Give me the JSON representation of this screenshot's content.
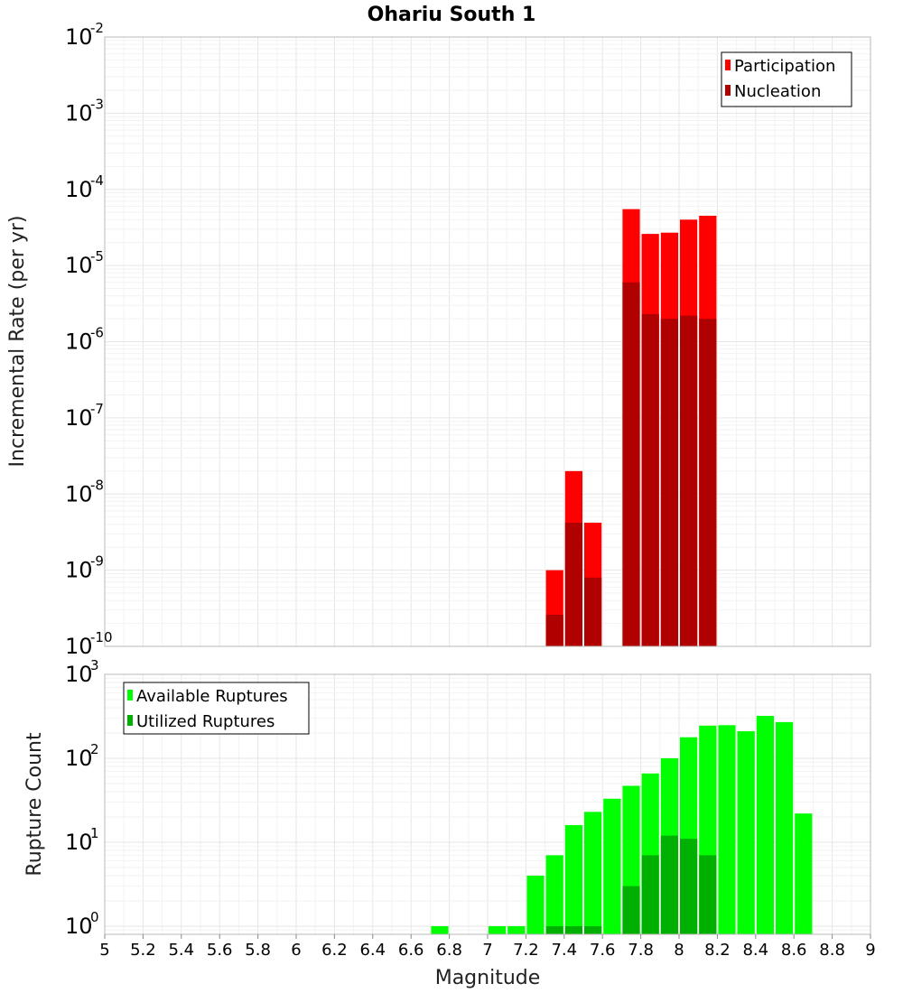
{
  "title": "Ohariu South 1",
  "chart_data": [
    {
      "type": "bar",
      "ylabel": "Incremental Rate (per yr)",
      "yscale": "log",
      "ylim": [
        1e-10,
        0.01
      ],
      "ytick_exponents": [
        "-10",
        "-9",
        "-8",
        "-7",
        "-6",
        "-5",
        "-4",
        "-3",
        "-2"
      ],
      "xlim": [
        5,
        9
      ],
      "bar_width": 0.1,
      "legend_position": "top-right",
      "series": [
        {
          "name": "Participation",
          "color": "#ff0000",
          "x": [
            7.35,
            7.45,
            7.55,
            7.75,
            7.85,
            7.95,
            8.05,
            8.15
          ],
          "values": [
            1e-09,
            2e-08,
            4.2e-09,
            5.5e-05,
            2.6e-05,
            2.7e-05,
            4e-05,
            4.5e-05
          ]
        },
        {
          "name": "Nucleation",
          "color": "#b00000",
          "x": [
            7.35,
            7.45,
            7.55,
            7.75,
            7.85,
            7.95,
            8.05,
            8.15
          ],
          "values": [
            2.6e-10,
            4.2e-09,
            8e-10,
            6e-06,
            2.3e-06,
            2e-06,
            2.2e-06,
            2e-06
          ]
        }
      ]
    },
    {
      "type": "bar",
      "ylabel": "Rupture Count",
      "yscale": "log",
      "ylim": [
        0.8,
        1000
      ],
      "ytick_exponents": [
        "0",
        "1",
        "2",
        "3"
      ],
      "xlim": [
        5,
        9
      ],
      "bar_width": 0.1,
      "legend_position": "top-left",
      "series": [
        {
          "name": "Available Ruptures",
          "color": "#00ff00",
          "x": [
            6.75,
            7.05,
            7.15,
            7.25,
            7.35,
            7.45,
            7.55,
            7.65,
            7.75,
            7.85,
            7.95,
            8.05,
            8.15,
            8.25,
            8.35,
            8.45,
            8.55,
            8.65
          ],
          "values": [
            1,
            1,
            1,
            4,
            7,
            16,
            23,
            33,
            47,
            66,
            100,
            178,
            245,
            248,
            210,
            320,
            270,
            22
          ]
        },
        {
          "name": "Utilized Ruptures",
          "color": "#00b000",
          "x": [
            7.35,
            7.45,
            7.55,
            7.75,
            7.85,
            7.95,
            8.05,
            8.15
          ],
          "values": [
            1,
            1,
            1,
            3,
            7,
            12,
            11,
            7
          ]
        }
      ]
    }
  ],
  "xaxis": {
    "label": "Magnitude",
    "ticks": [
      "5",
      "5.2",
      "5.4",
      "5.6",
      "5.8",
      "6",
      "6.2",
      "6.4",
      "6.6",
      "6.8",
      "7",
      "7.2",
      "7.4",
      "7.6",
      "7.8",
      "8",
      "8.2",
      "8.4",
      "8.6",
      "8.8",
      "9"
    ]
  }
}
